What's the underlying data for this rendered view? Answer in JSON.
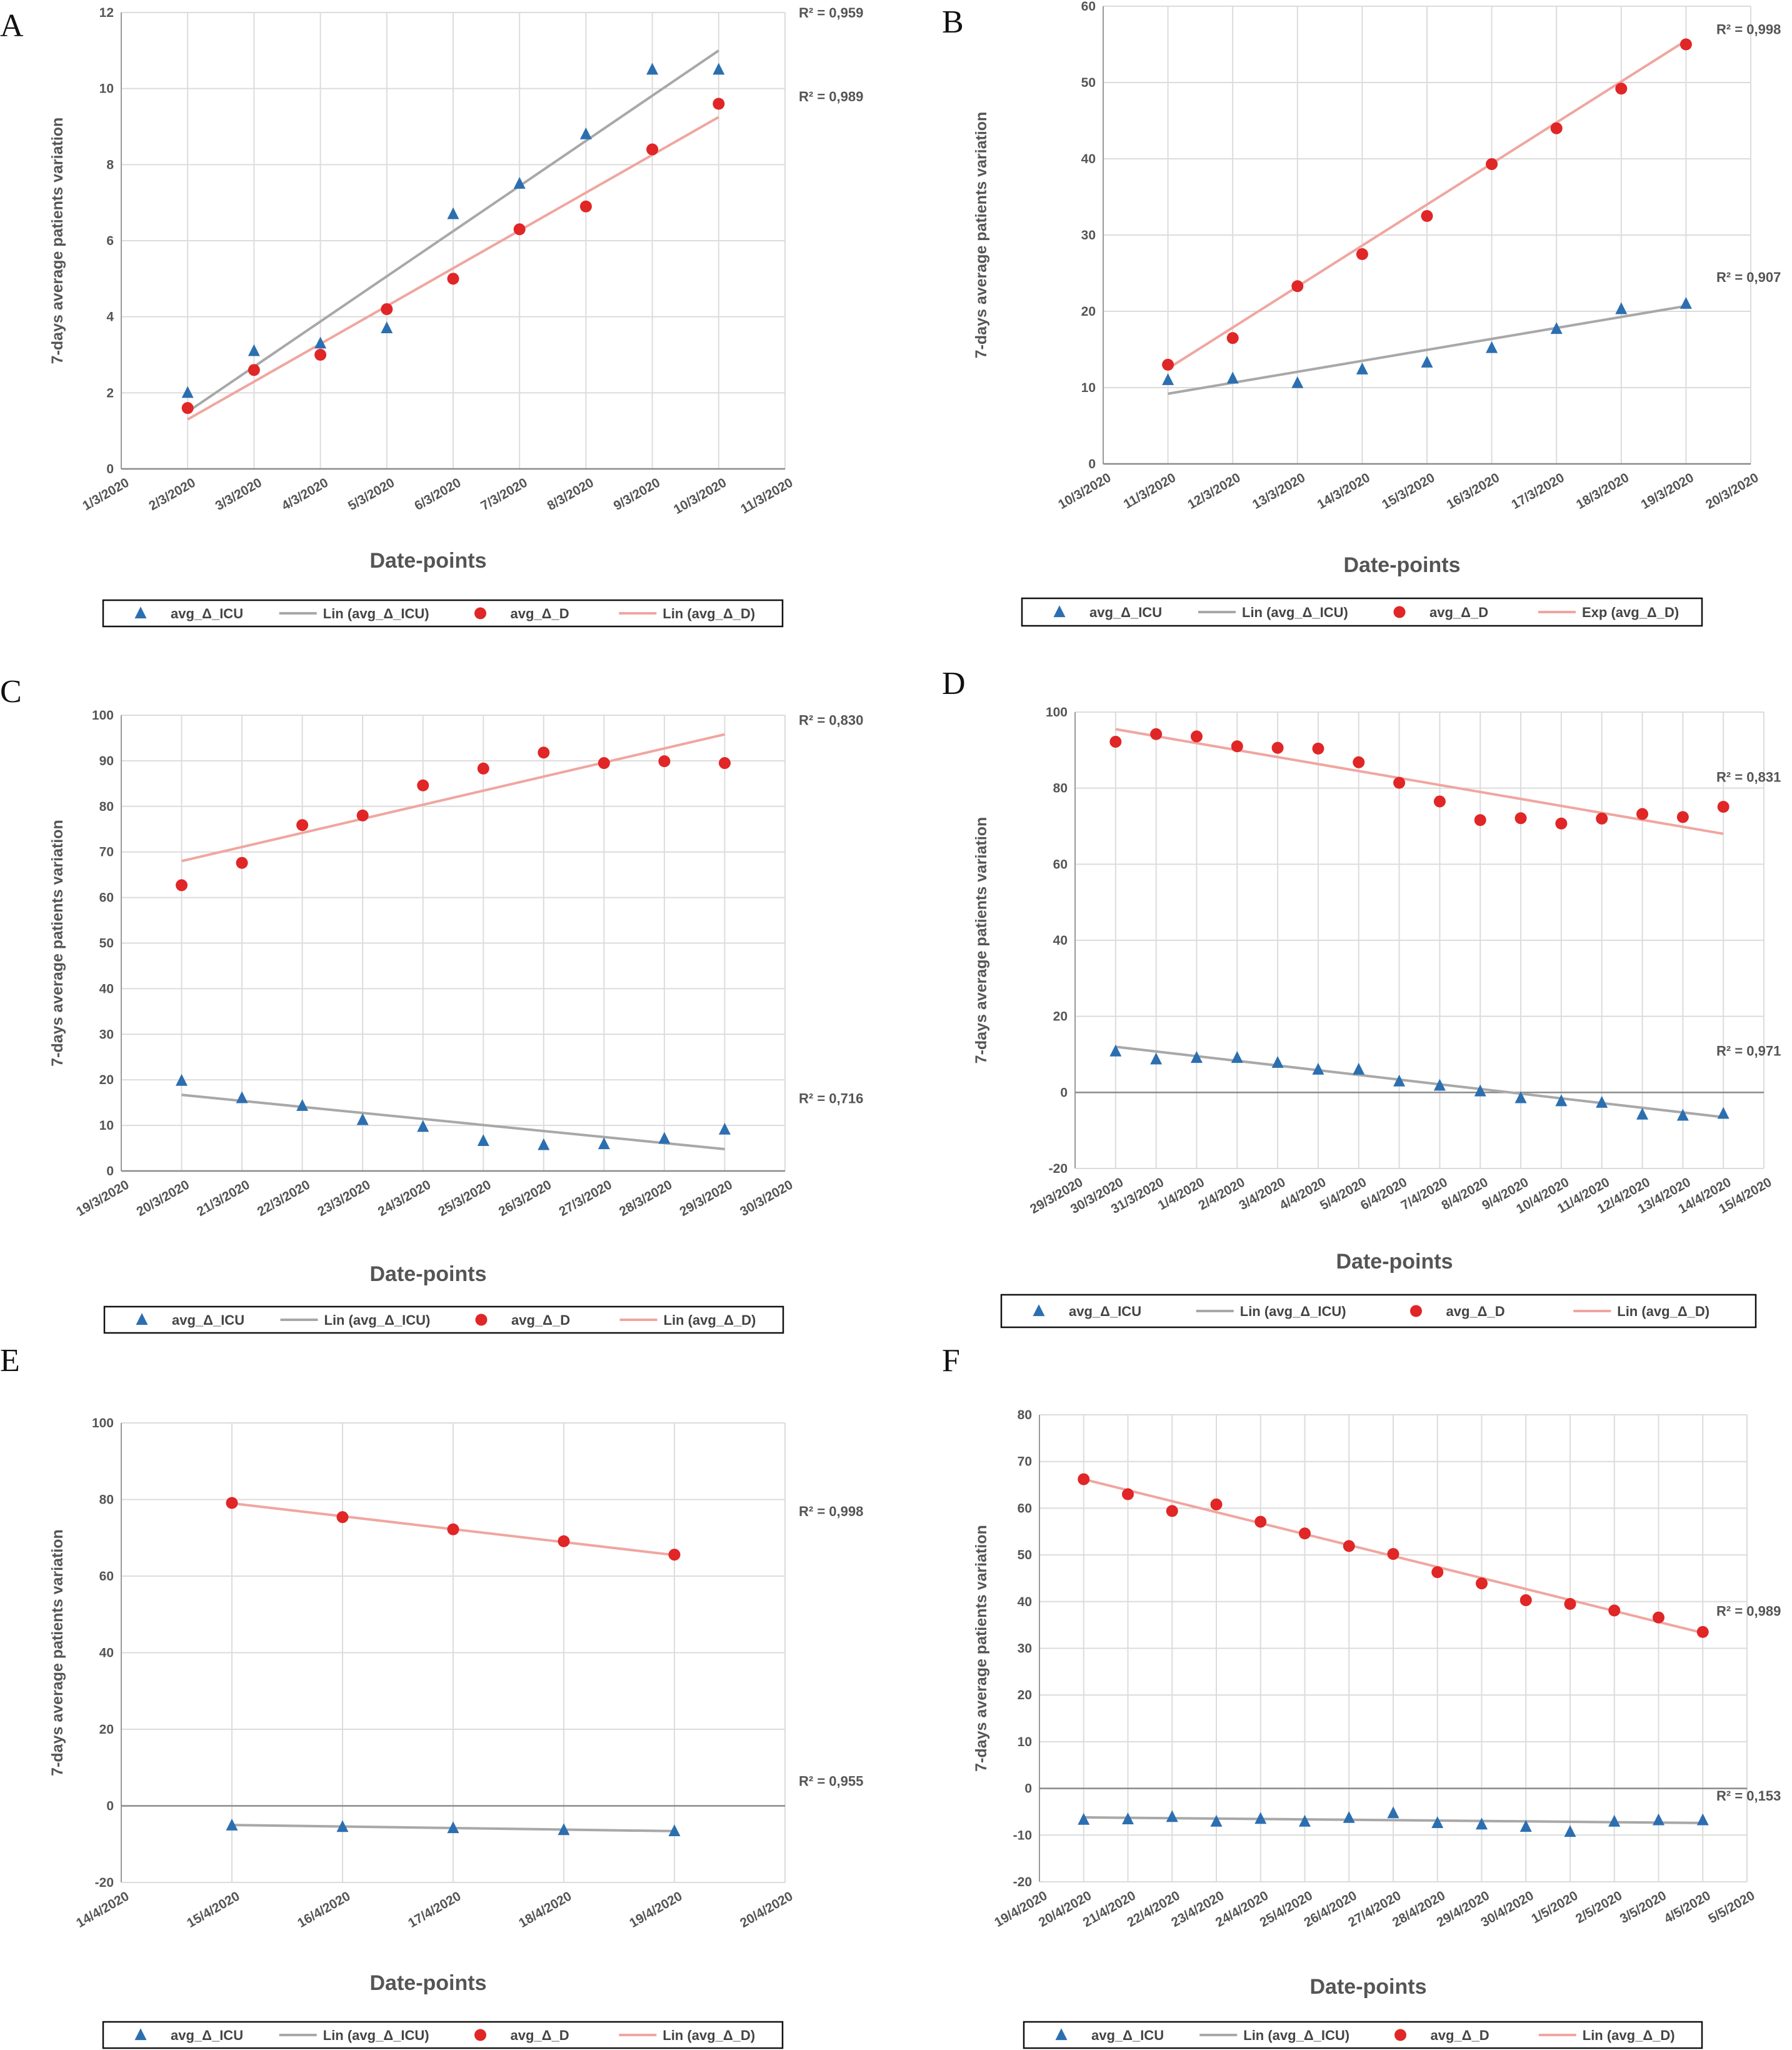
{
  "figure": {
    "background": "#ffffff"
  },
  "colors": {
    "icu": "#2c6fb0",
    "icu_trend": "#a8a8a8",
    "d": "#e02626",
    "d_trend": "#f0a6a0",
    "grid": "#dcdcdc",
    "axis": "#9a9a9a"
  },
  "chart_data": [
    {
      "panel": "A",
      "type": "scatter",
      "xlabel": "Date-points",
      "ylabel": "7-days average patients variation",
      "x_ticks": [
        "1/3/2020",
        "2/3/2020",
        "3/3/2020",
        "4/3/2020",
        "5/3/2020",
        "6/3/2020",
        "7/3/2020",
        "8/3/2020",
        "9/3/2020",
        "10/3/2020",
        "11/3/2020"
      ],
      "ylim": [
        0,
        12
      ],
      "y_ticks": [
        0,
        2,
        4,
        6,
        8,
        10,
        12
      ],
      "grid": true,
      "legend_position": "bottom",
      "series": [
        {
          "name": "avg_Δ_ICU",
          "marker": "triangle",
          "color": "#2c6fb0",
          "x": [
            "2/3/2020",
            "3/3/2020",
            "4/3/2020",
            "5/3/2020",
            "6/3/2020",
            "7/3/2020",
            "8/3/2020",
            "9/3/2020",
            "10/3/2020"
          ],
          "y": [
            2.0,
            3.1,
            3.3,
            3.7,
            6.7,
            7.5,
            8.8,
            10.5,
            10.5
          ]
        },
        {
          "name": "Lin (avg_Δ_ICU)",
          "trend": "linear",
          "color": "#a8a8a8",
          "x": [
            "2/3/2020",
            "10/3/2020"
          ],
          "y": [
            1.5,
            11.0
          ],
          "r2_label": "R² = 0,959",
          "r2_y": 12.0
        },
        {
          "name": "avg_Δ_D",
          "marker": "circle",
          "color": "#e02626",
          "x": [
            "2/3/2020",
            "3/3/2020",
            "4/3/2020",
            "5/3/2020",
            "6/3/2020",
            "7/3/2020",
            "8/3/2020",
            "9/3/2020",
            "10/3/2020"
          ],
          "y": [
            1.6,
            2.6,
            3.0,
            4.2,
            5.0,
            6.3,
            6.9,
            8.4,
            9.6
          ]
        },
        {
          "name": "Lin (avg_Δ_D)",
          "trend": "linear",
          "color": "#f0a6a0",
          "x": [
            "2/3/2020",
            "10/3/2020"
          ],
          "y": [
            1.3,
            9.25
          ],
          "r2_label": "R² = 0,989",
          "r2_y": 9.8
        }
      ]
    },
    {
      "panel": "B",
      "type": "scatter",
      "xlabel": "Date-points",
      "ylabel": "7-days average patients variation",
      "x_ticks": [
        "10/3/2020",
        "11/3/2020",
        "12/3/2020",
        "13/3/2020",
        "14/3/2020",
        "15/3/2020",
        "16/3/2020",
        "17/3/2020",
        "18/3/2020",
        "19/3/2020",
        "20/3/2020"
      ],
      "ylim": [
        0,
        60
      ],
      "y_ticks": [
        0,
        10,
        20,
        30,
        40,
        50,
        60
      ],
      "grid": true,
      "legend_position": "bottom",
      "series": [
        {
          "name": "avg_Δ_ICU",
          "marker": "triangle",
          "color": "#2c6fb0",
          "x": [
            "11/3/2020",
            "12/3/2020",
            "13/3/2020",
            "14/3/2020",
            "15/3/2020",
            "16/3/2020",
            "17/3/2020",
            "18/3/2020",
            "19/3/2020"
          ],
          "y": [
            11.0,
            11.2,
            10.6,
            12.4,
            13.3,
            15.2,
            17.7,
            20.3,
            21.0
          ]
        },
        {
          "name": "Lin (avg_Δ_ICU)",
          "trend": "linear",
          "color": "#a8a8a8",
          "x": [
            "11/3/2020",
            "19/3/2020"
          ],
          "y": [
            9.2,
            20.7
          ],
          "r2_label": "R² = 0,907",
          "r2_y": 24.5
        },
        {
          "name": "avg_Δ_D",
          "marker": "circle",
          "color": "#e02626",
          "x": [
            "11/3/2020",
            "12/3/2020",
            "13/3/2020",
            "14/3/2020",
            "15/3/2020",
            "16/3/2020",
            "17/3/2020",
            "18/3/2020",
            "19/3/2020"
          ],
          "y": [
            13.0,
            16.5,
            23.3,
            27.5,
            32.5,
            39.3,
            44.0,
            49.2,
            55.0
          ]
        },
        {
          "name": "Exp (avg_Δ_D)",
          "trend": "linear",
          "color": "#f0a6a0",
          "x": [
            "11/3/2020",
            "19/3/2020"
          ],
          "y": [
            12.5,
            55.5
          ],
          "r2_label": "R² = 0,998",
          "r2_y": 57.0
        }
      ]
    },
    {
      "panel": "C",
      "type": "scatter",
      "xlabel": "Date-points",
      "ylabel": "7-days average patients variation",
      "x_ticks": [
        "19/3/2020",
        "20/3/2020",
        "21/3/2020",
        "22/3/2020",
        "23/3/2020",
        "24/3/2020",
        "25/3/2020",
        "26/3/2020",
        "27/3/2020",
        "28/3/2020",
        "29/3/2020",
        "30/3/2020"
      ],
      "ylim": [
        0,
        100
      ],
      "y_ticks": [
        0,
        10,
        20,
        30,
        40,
        50,
        60,
        70,
        80,
        90,
        100
      ],
      "grid": true,
      "legend_position": "bottom",
      "series": [
        {
          "name": "avg_Δ_ICU",
          "marker": "triangle",
          "color": "#2c6fb0",
          "x": [
            "20/3/2020",
            "21/3/2020",
            "22/3/2020",
            "23/3/2020",
            "24/3/2020",
            "25/3/2020",
            "26/3/2020",
            "27/3/2020",
            "28/3/2020",
            "29/3/2020"
          ],
          "y": [
            19.8,
            16.0,
            14.3,
            11.2,
            9.7,
            6.6,
            5.7,
            5.9,
            7.1,
            9.1
          ]
        },
        {
          "name": "Lin (avg_Δ_ICU)",
          "trend": "linear",
          "color": "#a8a8a8",
          "x": [
            "20/3/2020",
            "29/3/2020"
          ],
          "y": [
            16.7,
            4.8
          ],
          "r2_label": "R² = 0,716",
          "r2_y": 16.0
        },
        {
          "name": "avg_Δ_D",
          "marker": "circle",
          "color": "#e02626",
          "x": [
            "20/3/2020",
            "21/3/2020",
            "22/3/2020",
            "23/3/2020",
            "24/3/2020",
            "25/3/2020",
            "26/3/2020",
            "27/3/2020",
            "28/3/2020",
            "29/3/2020"
          ],
          "y": [
            62.7,
            67.6,
            75.9,
            78.0,
            84.6,
            88.3,
            91.8,
            89.5,
            89.9,
            89.5
          ]
        },
        {
          "name": "Lin (avg_Δ_D)",
          "trend": "linear",
          "color": "#f0a6a0",
          "x": [
            "20/3/2020",
            "29/3/2020"
          ],
          "y": [
            68.0,
            95.8
          ],
          "r2_label": "R² = 0,830",
          "r2_y": 99.0
        }
      ]
    },
    {
      "panel": "D",
      "type": "scatter",
      "xlabel": "Date-points",
      "ylabel": "7-days average patients variation",
      "x_ticks": [
        "29/3/2020",
        "30/3/2020",
        "31/3/2020",
        "1/4/2020",
        "2/4/2020",
        "3/4/2020",
        "4/4/2020",
        "5/4/2020",
        "6/4/2020",
        "7/4/2020",
        "8/4/2020",
        "9/4/2020",
        "10/4/2020",
        "11/4/2020",
        "12/4/2020",
        "13/4/2020",
        "14/4/2020",
        "15/4/2020"
      ],
      "ylim": [
        -20,
        100
      ],
      "y_ticks": [
        -20,
        0,
        20,
        40,
        60,
        80,
        100
      ],
      "grid": true,
      "legend_position": "bottom",
      "series": [
        {
          "name": "avg_Δ_ICU",
          "marker": "triangle",
          "color": "#2c6fb0",
          "x": [
            "30/3/2020",
            "31/3/2020",
            "1/4/2020",
            "2/4/2020",
            "3/4/2020",
            "4/4/2020",
            "5/4/2020",
            "6/4/2020",
            "7/4/2020",
            "8/4/2020",
            "9/4/2020",
            "10/4/2020",
            "11/4/2020",
            "12/4/2020",
            "13/4/2020",
            "14/4/2020"
          ],
          "y": [
            10.8,
            8.7,
            9.1,
            9.1,
            7.8,
            6.0,
            6.0,
            2.9,
            1.8,
            0.3,
            -1.5,
            -2.3,
            -2.7,
            -5.8,
            -6.1,
            -5.6
          ]
        },
        {
          "name": "Lin (avg_Δ_ICU)",
          "trend": "linear",
          "color": "#a8a8a8",
          "x": [
            "30/3/2020",
            "14/4/2020"
          ],
          "y": [
            12.0,
            -6.5
          ],
          "r2_label": "R² = 0,971",
          "r2_y": 11.0
        },
        {
          "name": "avg_Δ_D",
          "marker": "circle",
          "color": "#e02626",
          "x": [
            "30/3/2020",
            "31/3/2020",
            "1/4/2020",
            "2/4/2020",
            "3/4/2020",
            "4/4/2020",
            "5/4/2020",
            "6/4/2020",
            "7/4/2020",
            "8/4/2020",
            "9/4/2020",
            "10/4/2020",
            "11/4/2020",
            "12/4/2020",
            "13/4/2020",
            "14/4/2020"
          ],
          "y": [
            92.2,
            94.2,
            93.6,
            91.0,
            90.6,
            90.4,
            86.8,
            81.4,
            76.5,
            71.6,
            72.1,
            70.7,
            72.0,
            73.2,
            72.4,
            75.1
          ]
        },
        {
          "name": "Lin (avg_Δ_D)",
          "trend": "linear",
          "color": "#f0a6a0",
          "x": [
            "30/3/2020",
            "14/4/2020"
          ],
          "y": [
            95.5,
            68.0
          ],
          "r2_label": "R² = 0,831",
          "r2_y": 83.0
        }
      ]
    },
    {
      "panel": "E",
      "type": "scatter",
      "xlabel": "Date-points",
      "ylabel": "7-days average patients variation",
      "x_ticks": [
        "14/4/2020",
        "15/4/2020",
        "16/4/2020",
        "17/4/2020",
        "18/4/2020",
        "19/4/2020",
        "20/4/2020"
      ],
      "ylim": [
        -20,
        100
      ],
      "y_ticks": [
        -20,
        0,
        20,
        40,
        60,
        80,
        100
      ],
      "grid": true,
      "legend_position": "bottom",
      "series": [
        {
          "name": "avg_Δ_ICU",
          "marker": "triangle",
          "color": "#2c6fb0",
          "x": [
            "15/4/2020",
            "16/4/2020",
            "17/4/2020",
            "18/4/2020",
            "19/4/2020"
          ],
          "y": [
            -5.1,
            -5.5,
            -5.8,
            -6.3,
            -6.6
          ]
        },
        {
          "name": "Lin (avg_Δ_ICU)",
          "trend": "linear",
          "color": "#a8a8a8",
          "x": [
            "15/4/2020",
            "19/4/2020"
          ],
          "y": [
            -5.0,
            -6.6
          ],
          "r2_label": "R² = 0,955",
          "r2_y": 6.5
        },
        {
          "name": "avg_Δ_D",
          "marker": "circle",
          "color": "#e02626",
          "x": [
            "15/4/2020",
            "16/4/2020",
            "17/4/2020",
            "18/4/2020",
            "19/4/2020"
          ],
          "y": [
            79.1,
            75.4,
            72.2,
            69.1,
            65.6
          ]
        },
        {
          "name": "Lin (avg_Δ_D)",
          "trend": "linear",
          "color": "#f0a6a0",
          "x": [
            "15/4/2020",
            "19/4/2020"
          ],
          "y": [
            79.0,
            65.5
          ],
          "r2_label": "R² = 0,998",
          "r2_y": 77.0
        }
      ]
    },
    {
      "panel": "F",
      "type": "scatter",
      "xlabel": "Date-points",
      "ylabel": "7-days average patients variation",
      "x_ticks": [
        "19/4/2020",
        "20/4/2020",
        "21/4/2020",
        "22/4/2020",
        "23/4/2020",
        "24/4/2020",
        "25/4/2020",
        "26/4/2020",
        "27/4/2020",
        "28/4/2020",
        "29/4/2020",
        "30/4/2020",
        "1/5/2020",
        "2/5/2020",
        "3/5/2020",
        "4/5/2020",
        "5/5/2020"
      ],
      "ylim": [
        -20,
        80
      ],
      "y_ticks": [
        -20,
        -10,
        0,
        10,
        20,
        30,
        40,
        50,
        60,
        70,
        80
      ],
      "grid": true,
      "legend_position": "bottom",
      "series": [
        {
          "name": "avg_Δ_ICU",
          "marker": "triangle",
          "color": "#2c6fb0",
          "x": [
            "20/4/2020",
            "21/4/2020",
            "22/4/2020",
            "23/4/2020",
            "24/4/2020",
            "25/4/2020",
            "26/4/2020",
            "27/4/2020",
            "28/4/2020",
            "29/4/2020",
            "30/4/2020",
            "1/5/2020",
            "2/5/2020",
            "3/5/2020",
            "4/5/2020"
          ],
          "y": [
            -6.7,
            -6.6,
            -6.1,
            -7.1,
            -6.5,
            -7.1,
            -6.3,
            -5.3,
            -7.4,
            -7.7,
            -8.2,
            -9.3,
            -7.1,
            -6.8,
            -6.8
          ]
        },
        {
          "name": "Lin (avg_Δ_ICU)",
          "trend": "linear",
          "color": "#a8a8a8",
          "x": [
            "20/4/2020",
            "4/5/2020"
          ],
          "y": [
            -6.2,
            -7.4
          ],
          "r2_label": "R² = 0,153",
          "r2_y": -1.5
        },
        {
          "name": "avg_Δ_D",
          "marker": "circle",
          "color": "#e02626",
          "x": [
            "20/4/2020",
            "21/4/2020",
            "22/4/2020",
            "23/4/2020",
            "24/4/2020",
            "25/4/2020",
            "26/4/2020",
            "27/4/2020",
            "28/4/2020",
            "29/4/2020",
            "30/4/2020",
            "1/5/2020",
            "2/5/2020",
            "3/5/2020",
            "4/5/2020"
          ],
          "y": [
            66.2,
            63.0,
            59.4,
            60.8,
            57.1,
            54.6,
            51.9,
            50.2,
            46.3,
            43.9,
            40.3,
            39.5,
            38.1,
            36.6,
            33.5
          ]
        },
        {
          "name": "Lin (avg_Δ_D)",
          "trend": "linear",
          "color": "#f0a6a0",
          "x": [
            "20/4/2020",
            "4/5/2020"
          ],
          "y": [
            66.2,
            33.3
          ],
          "r2_label": "R² = 0,989",
          "r2_y": 38.0
        }
      ]
    }
  ]
}
